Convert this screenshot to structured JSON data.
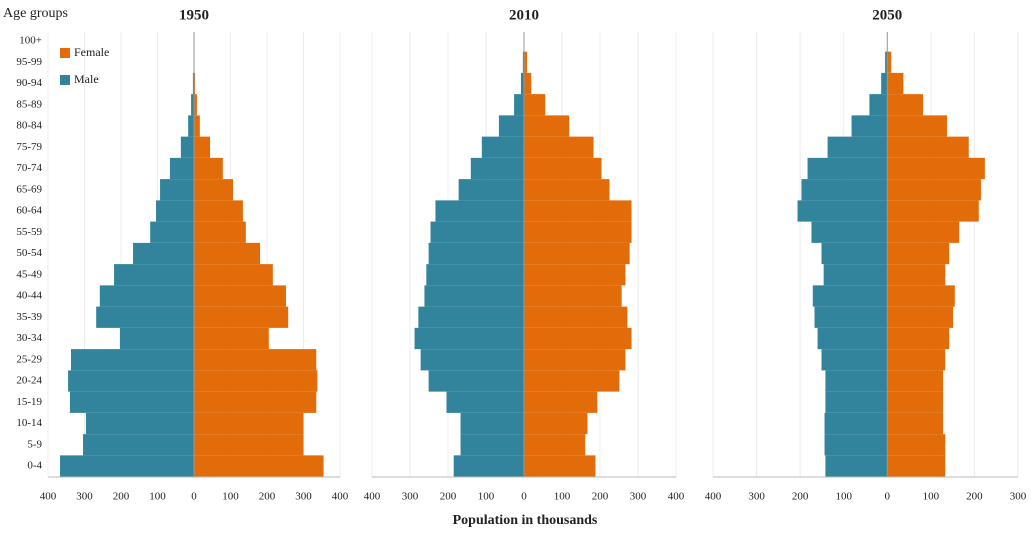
{
  "chart_data": [
    {
      "type": "pyramid",
      "title": "1950",
      "ylabel": "Age groups",
      "categories": [
        "0-4",
        "5-9",
        "10-14",
        "15-19",
        "20-24",
        "25-29",
        "30-34",
        "35-39",
        "40-44",
        "45-49",
        "50-54",
        "55-59",
        "60-64",
        "65-69",
        "70-74",
        "75-79",
        "80-84",
        "85-89",
        "90-94",
        "95-99",
        "100+"
      ],
      "series": [
        {
          "name": "Female",
          "color": "#e36c0a",
          "values": [
            355,
            300,
            300,
            335,
            338,
            335,
            205,
            258,
            252,
            216,
            181,
            142,
            134,
            107,
            79,
            44,
            16,
            8,
            3,
            0,
            0
          ]
        },
        {
          "name": "Male",
          "color": "#31849b",
          "values": [
            -367,
            -304,
            -296,
            -340,
            -345,
            -337,
            -203,
            -268,
            -258,
            -219,
            -167,
            -120,
            -104,
            -93,
            -66,
            -36,
            -16,
            -8,
            -3,
            0,
            0
          ]
        }
      ],
      "xlim": [
        -400,
        400
      ],
      "xticks": [
        {
          "value": -400,
          "label": "400"
        },
        {
          "value": -300,
          "label": "300"
        },
        {
          "value": -200,
          "label": "200"
        },
        {
          "value": -100,
          "label": "100"
        },
        0,
        100,
        200,
        300,
        400
      ],
      "grid": true,
      "legend": "top-left"
    },
    {
      "type": "pyramid",
      "title": "2010",
      "xlabel": "Population in thousands",
      "series": [
        {
          "color": "#e36c0a",
          "values": [
            188,
            161,
            167,
            193,
            251,
            267,
            283,
            272,
            257,
            267,
            278,
            283,
            283,
            225,
            204,
            183,
            119,
            56,
            19,
            8,
            0
          ]
        },
        {
          "color": "#31849b",
          "values": [
            -185,
            -167,
            -167,
            -204,
            -251,
            -272,
            -288,
            -278,
            -262,
            -257,
            -251,
            -246,
            -233,
            -172,
            -140,
            -111,
            -66,
            -26,
            -8,
            -3,
            0
          ]
        }
      ],
      "xlim": [
        -400,
        400
      ],
      "xticks": [
        {
          "value": -400,
          "label": "400"
        },
        {
          "value": -300,
          "label": "300"
        },
        {
          "value": -200,
          "label": "200"
        },
        {
          "value": -100,
          "label": "100"
        },
        0,
        100,
        200,
        300,
        400
      ],
      "grid": true
    },
    {
      "type": "pyramid",
      "title": "2050",
      "series": [
        {
          "color": "#e36c0a",
          "values": [
            133,
            133,
            128,
            128,
            128,
            133,
            142,
            151,
            155,
            133,
            142,
            165,
            210,
            215,
            224,
            187,
            137,
            82,
            37,
            9,
            0
          ]
        },
        {
          "color": "#31849b",
          "values": [
            -142,
            -144,
            -144,
            -142,
            -142,
            -151,
            -160,
            -167,
            -171,
            -146,
            -151,
            -174,
            -206,
            -197,
            -183,
            -137,
            -82,
            -41,
            -14,
            -5,
            0
          ]
        }
      ],
      "xlim": [
        -400,
        300
      ],
      "xticks": [
        {
          "value": -400,
          "label": "400"
        },
        {
          "value": -300,
          "label": "300"
        },
        {
          "value": -200,
          "label": "200"
        },
        {
          "value": -100,
          "label": "100"
        },
        0,
        100,
        200,
        300
      ],
      "grid": true
    }
  ]
}
